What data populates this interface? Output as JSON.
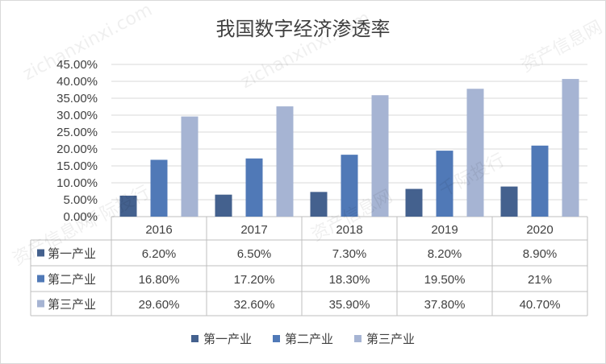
{
  "chart_data": {
    "type": "bar",
    "title": "我国数字经济渗透率",
    "categories": [
      "2016",
      "2017",
      "2018",
      "2019",
      "2020"
    ],
    "series": [
      {
        "name": "第一产业",
        "color": "#44618e",
        "values": [
          6.2,
          6.5,
          7.3,
          8.2,
          8.9
        ],
        "labels": [
          "6.20%",
          "6.50%",
          "7.30%",
          "8.20%",
          "8.90%"
        ]
      },
      {
        "name": "第二产业",
        "color": "#5079b7",
        "values": [
          16.8,
          17.2,
          18.3,
          19.5,
          21.0
        ],
        "labels": [
          "16.80%",
          "17.20%",
          "18.30%",
          "19.50%",
          "21%"
        ]
      },
      {
        "name": "第三产业",
        "color": "#a6b4d3",
        "values": [
          29.6,
          32.6,
          35.9,
          37.8,
          40.7
        ],
        "labels": [
          "29.60%",
          "32.60%",
          "35.90%",
          "37.80%",
          "40.70%"
        ]
      }
    ],
    "yticks": [
      "0.00%",
      "5.00%",
      "10.00%",
      "15.00%",
      "20.00%",
      "25.00%",
      "30.00%",
      "35.00%",
      "40.00%",
      "45.00%"
    ],
    "ylim": [
      0,
      45
    ],
    "grid": true,
    "legend_position": "bottom",
    "data_table": true
  },
  "watermarks": [
    "资产信息网",
    "zichanxinxi.com",
    "千际投行"
  ]
}
